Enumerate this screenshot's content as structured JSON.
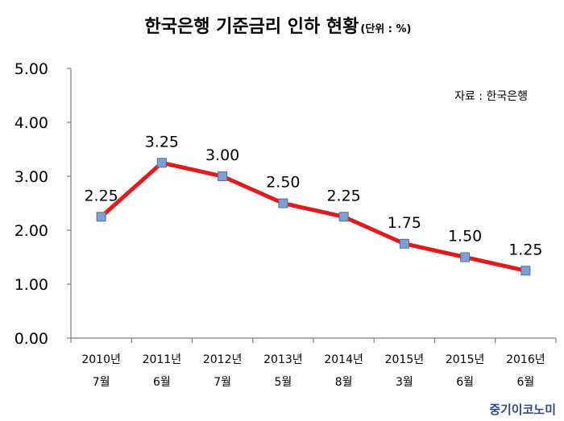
{
  "header": {
    "title": "한국은행 기준금리 인하 현황",
    "unit": "(단위 : %)"
  },
  "source": "자료 : 한국은행",
  "brand": "중기이코노미",
  "colors": {
    "line": "#e41a1a",
    "marker_fill": "#7f9fd3",
    "marker_stroke": "#4f6fa8",
    "axis": "#7f7f7f",
    "brand": "#2e4a8f"
  },
  "chart_data": {
    "type": "line",
    "title": "한국은행 기준금리 인하 현황",
    "categories": [
      [
        "2010년",
        "7월"
      ],
      [
        "2011년",
        "6월"
      ],
      [
        "2012년",
        "7월"
      ],
      [
        "2013년",
        "5월"
      ],
      [
        "2014년",
        "8월"
      ],
      [
        "2015년",
        "3월"
      ],
      [
        "2015년",
        "6월"
      ],
      [
        "2016년",
        "6월"
      ]
    ],
    "values": [
      2.25,
      3.25,
      3.0,
      2.5,
      2.25,
      1.75,
      1.5,
      1.25
    ],
    "value_labels": [
      "2.25",
      "3.25",
      "3.00",
      "2.50",
      "2.25",
      "1.75",
      "1.50",
      "1.25"
    ],
    "ylim": [
      0,
      5
    ],
    "yticks": [
      "0.00",
      "1.00",
      "2.00",
      "3.00",
      "4.00",
      "5.00"
    ],
    "grid": false,
    "legend": "none"
  }
}
